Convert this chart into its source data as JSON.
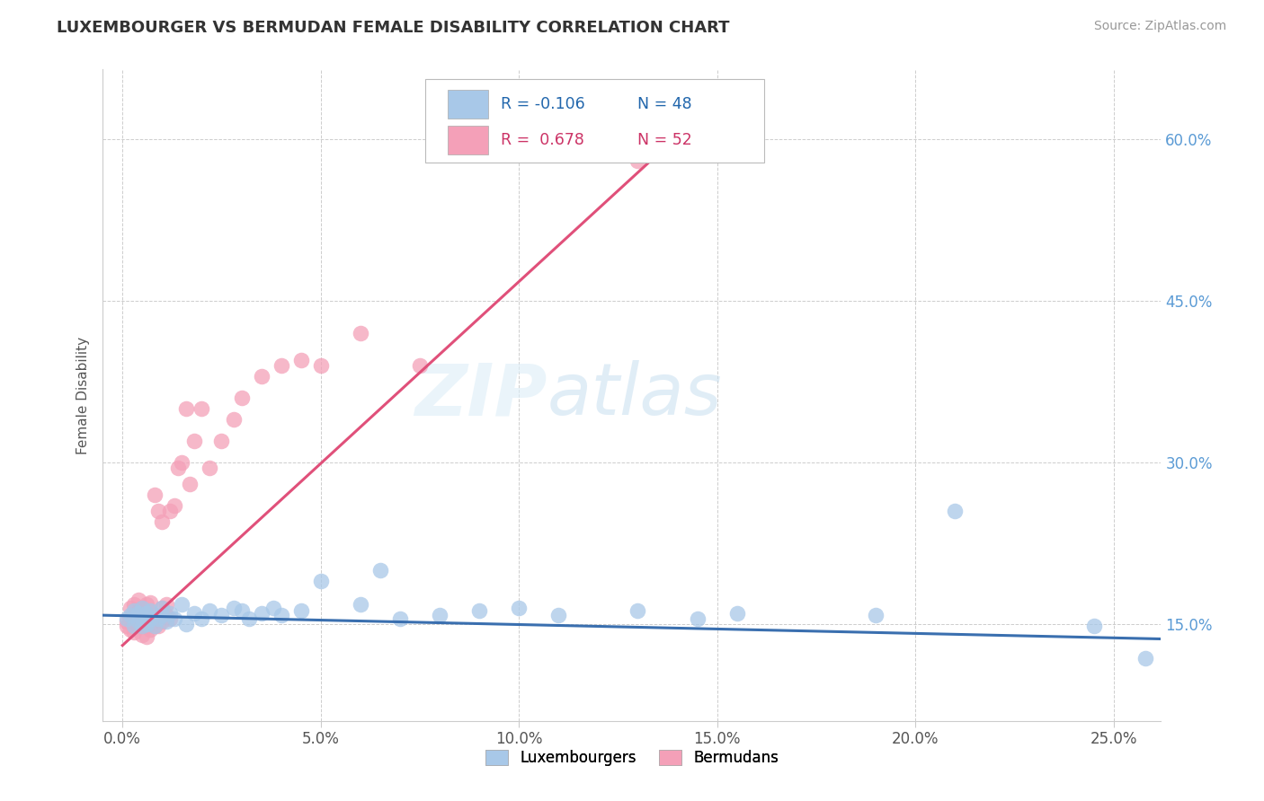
{
  "title": "LUXEMBOURGER VS BERMUDAN FEMALE DISABILITY CORRELATION CHART",
  "source": "Source: ZipAtlas.com",
  "xlabel_ticks": [
    "0.0%",
    "5.0%",
    "10.0%",
    "15.0%",
    "20.0%",
    "25.0%"
  ],
  "xlabel_vals": [
    0.0,
    0.05,
    0.1,
    0.15,
    0.2,
    0.25
  ],
  "ylabel_ticks": [
    "15.0%",
    "30.0%",
    "45.0%",
    "60.0%"
  ],
  "ylabel_vals": [
    0.15,
    0.3,
    0.45,
    0.6
  ],
  "xlim": [
    -0.005,
    0.262
  ],
  "ylim": [
    0.06,
    0.665
  ],
  "ylabel": "Female Disability",
  "legend_lux_label": "Luxembourgers",
  "legend_berm_label": "Bermudans",
  "lux_R": "-0.106",
  "lux_N": "48",
  "berm_R": "0.678",
  "berm_N": "52",
  "lux_color": "#a8c8e8",
  "berm_color": "#f4a0b8",
  "lux_line_color": "#3a6faf",
  "berm_line_color": "#e0507a",
  "watermark_zip": "ZIP",
  "watermark_atlas": "atlas",
  "lux_x": [
    0.001,
    0.002,
    0.003,
    0.003,
    0.004,
    0.004,
    0.005,
    0.005,
    0.005,
    0.006,
    0.006,
    0.007,
    0.007,
    0.008,
    0.009,
    0.01,
    0.01,
    0.011,
    0.012,
    0.013,
    0.015,
    0.016,
    0.018,
    0.02,
    0.022,
    0.025,
    0.028,
    0.03,
    0.032,
    0.035,
    0.038,
    0.04,
    0.045,
    0.05,
    0.06,
    0.065,
    0.07,
    0.08,
    0.09,
    0.1,
    0.11,
    0.13,
    0.145,
    0.155,
    0.19,
    0.21,
    0.245,
    0.258
  ],
  "lux_y": [
    0.155,
    0.158,
    0.148,
    0.162,
    0.152,
    0.16,
    0.148,
    0.155,
    0.165,
    0.15,
    0.16,
    0.155,
    0.162,
    0.148,
    0.155,
    0.158,
    0.165,
    0.152,
    0.16,
    0.155,
    0.168,
    0.15,
    0.16,
    0.155,
    0.162,
    0.158,
    0.165,
    0.162,
    0.155,
    0.16,
    0.165,
    0.158,
    0.162,
    0.19,
    0.168,
    0.2,
    0.155,
    0.158,
    0.162,
    0.165,
    0.158,
    0.162,
    0.155,
    0.16,
    0.158,
    0.255,
    0.148,
    0.118
  ],
  "berm_x": [
    0.001,
    0.001,
    0.002,
    0.002,
    0.002,
    0.003,
    0.003,
    0.003,
    0.004,
    0.004,
    0.004,
    0.005,
    0.005,
    0.005,
    0.005,
    0.006,
    0.006,
    0.006,
    0.006,
    0.007,
    0.007,
    0.007,
    0.008,
    0.008,
    0.008,
    0.009,
    0.009,
    0.01,
    0.01,
    0.01,
    0.011,
    0.011,
    0.012,
    0.012,
    0.013,
    0.014,
    0.015,
    0.016,
    0.017,
    0.018,
    0.02,
    0.022,
    0.025,
    0.028,
    0.03,
    0.035,
    0.04,
    0.045,
    0.05,
    0.06,
    0.075,
    0.13
  ],
  "berm_y": [
    0.148,
    0.152,
    0.145,
    0.155,
    0.165,
    0.142,
    0.158,
    0.168,
    0.148,
    0.162,
    0.172,
    0.14,
    0.148,
    0.155,
    0.165,
    0.138,
    0.148,
    0.158,
    0.168,
    0.145,
    0.155,
    0.17,
    0.148,
    0.158,
    0.27,
    0.148,
    0.255,
    0.152,
    0.165,
    0.245,
    0.158,
    0.168,
    0.155,
    0.255,
    0.26,
    0.295,
    0.3,
    0.35,
    0.28,
    0.32,
    0.35,
    0.295,
    0.32,
    0.34,
    0.36,
    0.38,
    0.39,
    0.395,
    0.39,
    0.42,
    0.39,
    0.58
  ],
  "berm_line_x0": 0.0,
  "berm_line_y0": 0.13,
  "berm_line_x1": 0.145,
  "berm_line_y1": 0.62,
  "lux_line_x0": -0.005,
  "lux_line_y0": 0.158,
  "lux_line_x1": 0.262,
  "lux_line_y1": 0.136
}
